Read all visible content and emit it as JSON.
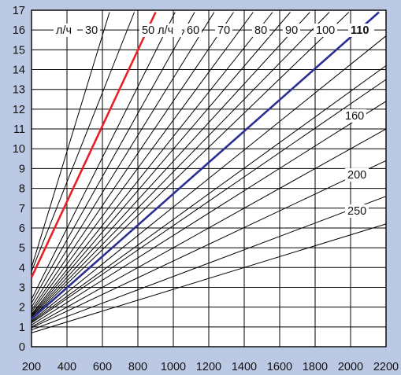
{
  "chart_data": {
    "type": "line",
    "title": "",
    "xlabel": "",
    "ylabel": "",
    "xlim": [
      200,
      2200
    ],
    "ylim": [
      0,
      17
    ],
    "x_ticks": [
      200,
      400,
      600,
      800,
      1000,
      1200,
      1400,
      1600,
      1800,
      2000,
      2200
    ],
    "y_ticks": [
      0,
      1,
      2,
      3,
      4,
      5,
      6,
      7,
      8,
      9,
      10,
      11,
      12,
      13,
      14,
      15,
      16,
      17
    ],
    "grid": true,
    "legend": "none",
    "colors": {
      "background": "#bcc9e4",
      "plot_area": "#ffffff",
      "grid": "#000000",
      "thin_line": "#000000",
      "highlight_red": "#e8202a",
      "highlight_blue": "#2b2f93"
    },
    "unit_label": "л/ч",
    "series": [
      {
        "label": "30",
        "style": "thin",
        "points": [
          [
            200,
            4.0
          ],
          [
            640,
            16.9
          ]
        ]
      },
      {
        "label": "",
        "style": "thin",
        "points": [
          [
            200,
            3.8
          ],
          [
            780,
            16.9
          ]
        ]
      },
      {
        "label": "",
        "style": "red",
        "points": [
          [
            200,
            3.5
          ],
          [
            900,
            16.9
          ]
        ]
      },
      {
        "label": "50",
        "style": "thin",
        "points": [
          [
            200,
            2.4
          ],
          [
            1010,
            16.9
          ]
        ]
      },
      {
        "label": "60",
        "style": "thin",
        "points": [
          [
            200,
            2.2
          ],
          [
            1120,
            16.9
          ]
        ]
      },
      {
        "label": "",
        "style": "thin",
        "points": [
          [
            200,
            2.0
          ],
          [
            1230,
            16.9
          ]
        ]
      },
      {
        "label": "70",
        "style": "thin",
        "points": [
          [
            200,
            1.85
          ],
          [
            1340,
            16.9
          ]
        ]
      },
      {
        "label": "",
        "style": "thin",
        "points": [
          [
            200,
            1.75
          ],
          [
            1450,
            16.9
          ]
        ]
      },
      {
        "label": "80",
        "style": "thin",
        "points": [
          [
            200,
            1.65
          ],
          [
            1560,
            16.9
          ]
        ]
      },
      {
        "label": "",
        "style": "thin",
        "points": [
          [
            200,
            1.6
          ],
          [
            1660,
            16.9
          ]
        ]
      },
      {
        "label": "90",
        "style": "thin",
        "points": [
          [
            200,
            1.55
          ],
          [
            1770,
            16.9
          ]
        ]
      },
      {
        "label": "100",
        "style": "thin",
        "points": [
          [
            200,
            1.5
          ],
          [
            1880,
            16.9
          ]
        ]
      },
      {
        "label": "",
        "style": "thin",
        "points": [
          [
            200,
            1.45
          ],
          [
            1990,
            16.9
          ]
        ]
      },
      {
        "label": "110",
        "style": "blue",
        "points": [
          [
            200,
            1.4
          ],
          [
            2160,
            16.9
          ]
        ]
      },
      {
        "label": "",
        "style": "thin",
        "points": [
          [
            200,
            1.3
          ],
          [
            2200,
            15.7
          ]
        ]
      },
      {
        "label": "",
        "style": "thin",
        "points": [
          [
            200,
            1.25
          ],
          [
            2200,
            14.2
          ]
        ]
      },
      {
        "label": "",
        "style": "thin",
        "points": [
          [
            200,
            1.2
          ],
          [
            2200,
            13.5
          ]
        ]
      },
      {
        "label": "160",
        "style": "thin",
        "points": [
          [
            200,
            1.1
          ],
          [
            2200,
            12.4
          ]
        ]
      },
      {
        "label": "",
        "style": "thin",
        "points": [
          [
            200,
            1.0
          ],
          [
            2200,
            11.0
          ]
        ]
      },
      {
        "label": "200",
        "style": "thin",
        "points": [
          [
            200,
            0.95
          ],
          [
            2200,
            9.4
          ]
        ]
      },
      {
        "label": "250",
        "style": "thin",
        "points": [
          [
            200,
            0.85
          ],
          [
            2200,
            7.6
          ]
        ]
      },
      {
        "label": "",
        "style": "thin",
        "points": [
          [
            200,
            0.7
          ],
          [
            2200,
            6.2
          ]
        ]
      }
    ]
  }
}
